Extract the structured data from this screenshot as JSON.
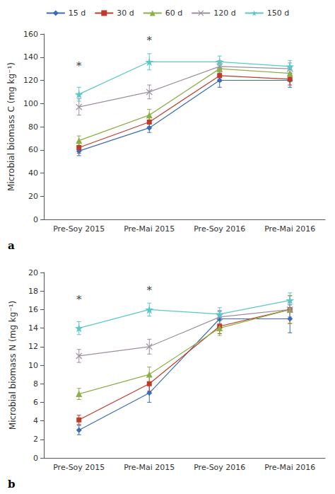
{
  "chart_data": [
    {
      "type": "line",
      "title": "a",
      "ylabel": "Microbial biomass C (mg kg⁻¹)",
      "categories": [
        "Pre-Soy 2015",
        "Pre-Mai 2015",
        "Pre-Soy 2016",
        "Pre-Mai 2016"
      ],
      "ylim": [
        0,
        160
      ],
      "yticks": [
        0,
        20,
        40,
        60,
        80,
        100,
        120,
        140,
        160
      ],
      "grid": false,
      "series": [
        {
          "name": "15 d",
          "color": "#3A6DB5",
          "marker": "diamond",
          "values": [
            59,
            79,
            120,
            120
          ],
          "errors": [
            4,
            4,
            6,
            6
          ]
        },
        {
          "name": "30 d",
          "color": "#C0392B",
          "marker": "square",
          "values": [
            62,
            84,
            124,
            121
          ],
          "errors": [
            5,
            4,
            5,
            5
          ]
        },
        {
          "name": "60 d",
          "color": "#8DB045",
          "marker": "triangle",
          "values": [
            68,
            90,
            130,
            126
          ],
          "errors": [
            4,
            5,
            5,
            5
          ]
        },
        {
          "name": "120 d",
          "color": "#9E8FA0",
          "marker": "x",
          "values": [
            97,
            110,
            132,
            130
          ],
          "errors": [
            7,
            6,
            5,
            5
          ]
        },
        {
          "name": "150 d",
          "color": "#5BC8C8",
          "marker": "star",
          "values": [
            108,
            136,
            136,
            132
          ],
          "errors": [
            6,
            7,
            5,
            5
          ]
        }
      ],
      "annotations": [
        {
          "text": "*",
          "x": "Pre-Soy 2015",
          "y": 128
        },
        {
          "text": "*",
          "x": "Pre-Mai 2015",
          "y": 150
        }
      ]
    },
    {
      "type": "line",
      "title": "b",
      "ylabel": "Microbial biomass N (mg kg⁻¹)",
      "categories": [
        "Pre-Soy 2015",
        "Pre-Mai 2015",
        "Pre-Soy 2016",
        "Pre-Mai 2016"
      ],
      "ylim": [
        0,
        20
      ],
      "yticks": [
        0,
        2,
        4,
        6,
        8,
        10,
        12,
        14,
        16,
        18,
        20
      ],
      "grid": false,
      "series": [
        {
          "name": "15 d",
          "color": "#3A6DB5",
          "marker": "diamond",
          "values": [
            3.0,
            7.0,
            15.0,
            15.0
          ],
          "errors": [
            0.5,
            1.0,
            0.8,
            1.5
          ]
        },
        {
          "name": "30 d",
          "color": "#C0392B",
          "marker": "square",
          "values": [
            4.1,
            8.0,
            14.2,
            16.0
          ],
          "errors": [
            0.5,
            0.8,
            0.8,
            1.5
          ]
        },
        {
          "name": "60 d",
          "color": "#8DB045",
          "marker": "triangle",
          "values": [
            6.9,
            9.0,
            14.0,
            16.0
          ],
          "errors": [
            0.6,
            0.8,
            0.8,
            1.5
          ]
        },
        {
          "name": "120 d",
          "color": "#9E8FA0",
          "marker": "x",
          "values": [
            11.0,
            12.0,
            15.2,
            16.0
          ],
          "errors": [
            0.7,
            0.8,
            0.7,
            0.8
          ]
        },
        {
          "name": "150 d",
          "color": "#5BC8C8",
          "marker": "star",
          "values": [
            14.0,
            16.0,
            15.5,
            17.0
          ],
          "errors": [
            0.7,
            0.7,
            0.7,
            0.8
          ]
        }
      ],
      "annotations": [
        {
          "text": "*",
          "x": "Pre-Soy 2015",
          "y": 16.5
        },
        {
          "text": "*",
          "x": "Pre-Mai 2015",
          "y": 17.5
        }
      ]
    }
  ]
}
